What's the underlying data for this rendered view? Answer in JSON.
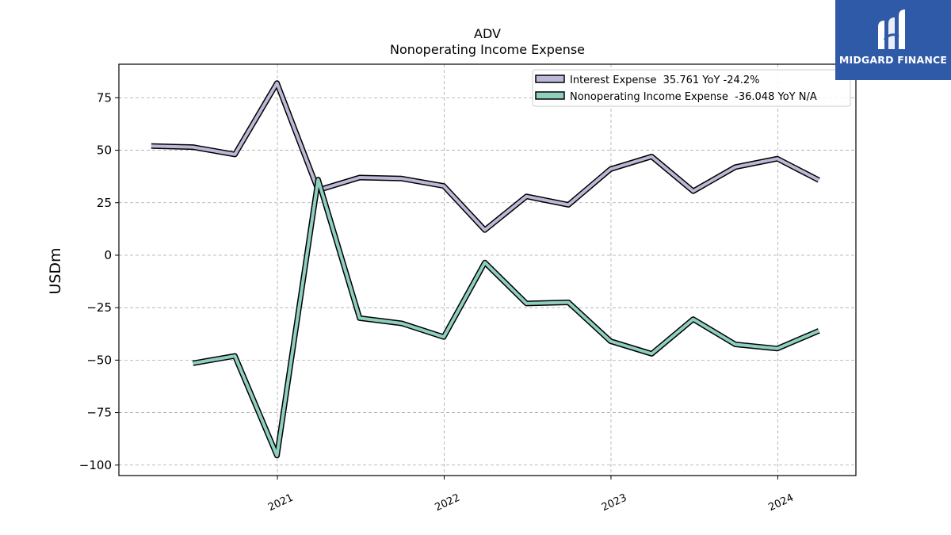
{
  "brand": {
    "name": "MIDGARD FINANCE",
    "logo_bg": "#2f5aa8",
    "logo_icon": "midgard-logo-icon"
  },
  "chart_data": {
    "type": "line",
    "title": "ADV",
    "subtitle": "Nonoperating Income Expense",
    "xlabel": "",
    "ylabel": "USDm",
    "x_tick_labels": [
      "2021",
      "2022",
      "2023",
      "2024"
    ],
    "y_ticks": [
      75,
      50,
      25,
      0,
      -25,
      -50,
      -75,
      -100
    ],
    "y_tick_labels": [
      "75",
      "50",
      "25",
      "0",
      "−25",
      "−50",
      "−75",
      "−100"
    ],
    "ylim": [
      -105,
      91
    ],
    "xlim": [
      "2020-01-20",
      "2024-06-20"
    ],
    "grid": true,
    "legend_position": "top-right",
    "series": [
      {
        "name": "Interest Expense",
        "legend_label": "Interest Expense  35.761 YoY -24.2%",
        "color": "#bcb9d8",
        "x": [
          "2020-03-31",
          "2020-06-30",
          "2020-09-30",
          "2020-12-31",
          "2021-03-31",
          "2021-06-30",
          "2021-09-30",
          "2021-12-31",
          "2022-03-31",
          "2022-06-30",
          "2022-09-30",
          "2022-12-31",
          "2023-03-31",
          "2023-06-30",
          "2023-09-30",
          "2023-12-31",
          "2024-03-31"
        ],
        "values": [
          52,
          51.5,
          48,
          82,
          31,
          37,
          36.5,
          33,
          12,
          28,
          24,
          41,
          47,
          30.5,
          42,
          46,
          35.761
        ]
      },
      {
        "name": "Nonoperating Income Expense",
        "legend_label": "Nonoperating Income Expense  -36.048 YoY N/A",
        "color": "#8ecfc0",
        "x": [
          "2020-06-30",
          "2020-09-30",
          "2020-12-31",
          "2021-03-31",
          "2021-06-30",
          "2021-09-30",
          "2021-12-31",
          "2022-03-31",
          "2022-06-30",
          "2022-09-30",
          "2022-12-31",
          "2023-03-31",
          "2023-06-30",
          "2023-09-30",
          "2023-12-31",
          "2024-03-31"
        ],
        "values": [
          -51.5,
          -48,
          -95.5,
          36,
          -30,
          -32.5,
          -39,
          -3.5,
          -23,
          -22.5,
          -41,
          -47,
          -30.5,
          -42.5,
          -44.5,
          -36.048
        ]
      }
    ]
  }
}
